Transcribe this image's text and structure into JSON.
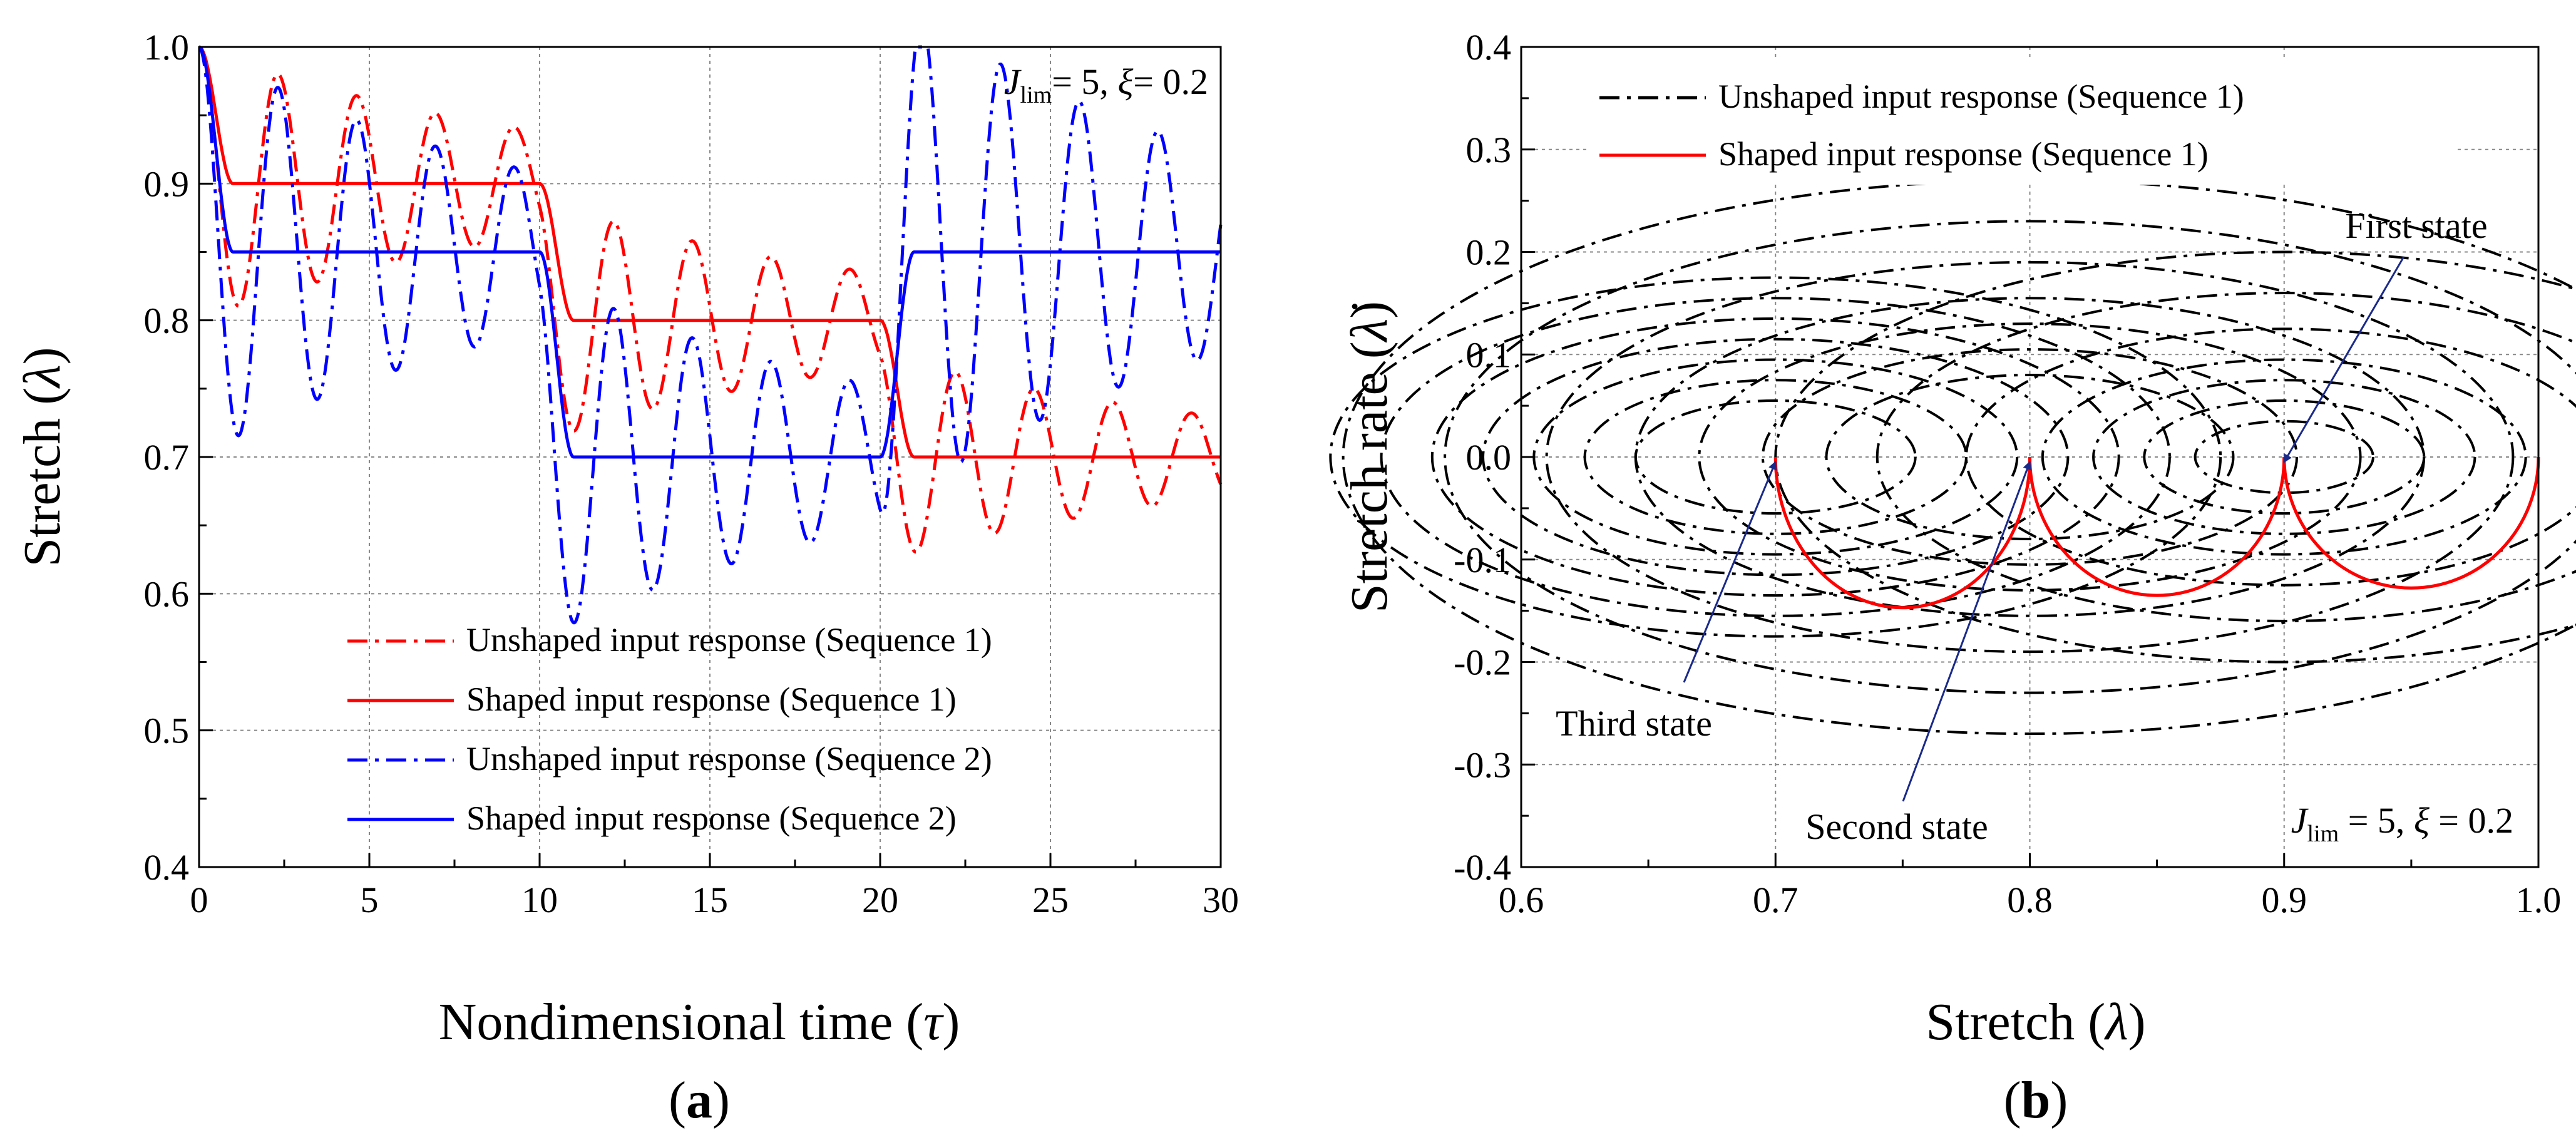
{
  "chart_data": [
    {
      "id": "a",
      "type": "line",
      "panel_label": "a",
      "xlabel_text": "Nondimensional time (",
      "xlabel_symbol": "τ",
      "xlabel_close": ")",
      "ylabel_text": "Stretch (",
      "ylabel_symbol": "λ",
      "ylabel_close": ")",
      "xlim": [
        0,
        30
      ],
      "ylim": [
        0.4,
        1.0
      ],
      "xticks": [
        0,
        5,
        10,
        15,
        20,
        25,
        30
      ],
      "yticks": [
        0.4,
        0.5,
        0.6,
        0.7,
        0.8,
        0.9,
        1.0
      ],
      "xtick_labels": [
        "0",
        "5",
        "10",
        "15",
        "20",
        "25",
        "30"
      ],
      "ytick_labels": [
        "0.4",
        "0.5",
        "0.6",
        "0.7",
        "0.8",
        "0.9",
        "1.0"
      ],
      "grid": true,
      "annotation": {
        "J": "J",
        "lim": "lim",
        "rest": "= 5, ",
        "xi": "ξ",
        "xi_val": "= 0.2"
      },
      "legend_position": "bottom-right",
      "series": [
        {
          "name": "Unshaped input response (Sequence 1)",
          "color": "#ff0000",
          "dash": "dashdot",
          "steps": [
            [
              0,
              0.9
            ],
            [
              10,
              0.8
            ],
            [
              20,
              0.7
            ]
          ],
          "omega": 2.72,
          "zeta": 0.035
        },
        {
          "name": "Shaped input response (Sequence 1)",
          "color": "#ff0000",
          "dash": "solid",
          "steps": [
            [
              0,
              0.9
            ],
            [
              10,
              0.8
            ],
            [
              20,
              0.7
            ]
          ],
          "ramp": 1.0
        },
        {
          "name": "Unshaped input response (Sequence 2)",
          "color": "#0000ff",
          "dash": "dashdot",
          "steps": [
            [
              0,
              0.85
            ],
            [
              10,
              0.7
            ],
            [
              20,
              0.85
            ]
          ],
          "omega": 2.72,
          "zeta": 0.035
        },
        {
          "name": "Shaped input response (Sequence 2)",
          "color": "#0000ff",
          "dash": "solid",
          "steps": [
            [
              0,
              0.85
            ],
            [
              10,
              0.7
            ],
            [
              20,
              0.85
            ]
          ],
          "ramp": 1.0
        }
      ]
    },
    {
      "id": "b",
      "type": "line",
      "panel_label": "b",
      "xlabel_text": "Stretch (",
      "xlabel_symbol": "λ",
      "xlabel_close": ")",
      "ylabel_text": "Stretch rate (",
      "ylabel_symbol": "λ̇",
      "ylabel_close": ")",
      "xlim": [
        0.6,
        1.0
      ],
      "ylim": [
        -0.4,
        0.4
      ],
      "xticks": [
        0.6,
        0.7,
        0.8,
        0.9,
        1.0
      ],
      "yticks": [
        -0.4,
        -0.3,
        -0.2,
        -0.1,
        0.0,
        0.1,
        0.2,
        0.3,
        0.4
      ],
      "xtick_labels": [
        "0.6",
        "0.7",
        "0.8",
        "0.9",
        "1.0"
      ],
      "ytick_labels": [
        "-0.4",
        "-0.3",
        "-0.2",
        "-0.1",
        "0.0",
        "0.1",
        "0.2",
        "0.3",
        "0.4"
      ],
      "grid": true,
      "legend_position": "top-left",
      "annotation": {
        "J": "J",
        "lim": "lim",
        "rest": " = 5, ",
        "xi": "ξ",
        "xi_val": " = 0.2"
      },
      "states": [
        {
          "label": "First state",
          "x": 0.9,
          "y": 0.0
        },
        {
          "label": "Second state",
          "x": 0.8,
          "y": 0.0
        },
        {
          "label": "Third state",
          "x": 0.7,
          "y": 0.0
        }
      ],
      "series": [
        {
          "name": "Unshaped input response (Sequence 1)",
          "color": "#000000",
          "dash": "dashdot",
          "circles": [
            {
              "cx": 0.7,
              "cy": 0.0,
              "r": [
                0.055,
                0.075,
                0.095,
                0.115,
                0.135,
                0.155,
                0.175
              ]
            },
            {
              "cx": 0.8,
              "cy": 0.0,
              "r": [
                0.08,
                0.105,
                0.13,
                0.155,
                0.19,
                0.23,
                0.27
              ]
            },
            {
              "cx": 0.9,
              "cy": 0.0,
              "r": [
                0.035,
                0.055,
                0.075,
                0.095,
                0.125,
                0.16,
                0.2
              ]
            }
          ]
        },
        {
          "name": "Shaped input response (Sequence 1)",
          "color": "#ff0000",
          "dash": "solid",
          "arcs": [
            {
              "from": 0.7,
              "to": 0.8,
              "min_rate": -0.147
            },
            {
              "from": 0.8,
              "to": 0.9,
              "min_rate": -0.135
            },
            {
              "from": 0.9,
              "to": 1.0,
              "min_rate": -0.128
            }
          ]
        }
      ]
    }
  ]
}
